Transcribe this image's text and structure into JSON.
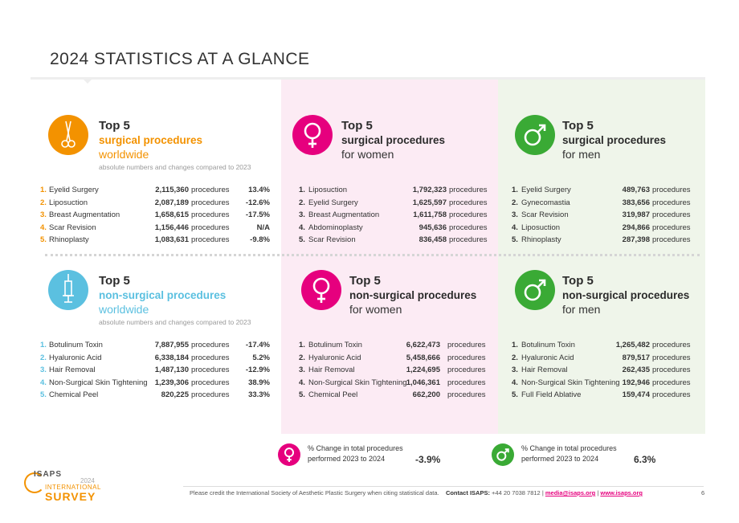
{
  "title": "2024 STATISTICS AT A GLANCE",
  "colors": {
    "surgical_worldwide": "#f39200",
    "nonsurgical_worldwide": "#5bc0e0",
    "women": "#e6007e",
    "men": "#3aaa35",
    "women_bg": "#fcebf4",
    "men_bg": "#eff5ea"
  },
  "panels": {
    "surg_world": {
      "top": "Top 5",
      "category": "surgical procedures",
      "subtitle": "worldwide",
      "note": "absolute numbers and changes compared to 2023",
      "icon": "scissors-icon",
      "rows": [
        {
          "rank": "1.",
          "name": "Eyelid Surgery",
          "number": "2,115,360",
          "unit": "procedures",
          "change": "13.4%"
        },
        {
          "rank": "2.",
          "name": "Liposuction",
          "number": "2,087,189",
          "unit": "procedures",
          "change": "-12.6%"
        },
        {
          "rank": "3.",
          "name": "Breast Augmentation",
          "number": "1,658,615",
          "unit": "procedures",
          "change": "-17.5%"
        },
        {
          "rank": "4.",
          "name": "Scar Revision",
          "number": "1,156,446",
          "unit": "procedures",
          "change": "N/A"
        },
        {
          "rank": "5.",
          "name": "Rhinoplasty",
          "number": "1,083,631",
          "unit": "procedures",
          "change": "-9.8%"
        }
      ]
    },
    "surg_women": {
      "top": "Top 5",
      "category": "surgical procedures",
      "subtitle": "for women",
      "icon": "female-symbol-icon",
      "rows": [
        {
          "rank": "1.",
          "name": "Liposuction",
          "number": "1,792,323",
          "unit": "procedures"
        },
        {
          "rank": "2.",
          "name": "Eyelid Surgery",
          "number": "1,625,597",
          "unit": "procedures"
        },
        {
          "rank": "3.",
          "name": "Breast Augmentation",
          "number": "1,611,758",
          "unit": "procedures"
        },
        {
          "rank": "4.",
          "name": "Abdominoplasty",
          "number": "945,636",
          "unit": "procedures"
        },
        {
          "rank": "5.",
          "name": "Scar Revision",
          "number": "836,458",
          "unit": "procedures"
        }
      ]
    },
    "surg_men": {
      "top": "Top 5",
      "category": "surgical procedures",
      "subtitle": "for men",
      "icon": "male-symbol-icon",
      "rows": [
        {
          "rank": "1.",
          "name": "Eyelid Surgery",
          "number": "489,763",
          "unit": "procedures"
        },
        {
          "rank": "2.",
          "name": "Gynecomastia",
          "number": "383,656",
          "unit": "procedures"
        },
        {
          "rank": "3.",
          "name": "Scar Revision",
          "number": "319,987",
          "unit": "procedures"
        },
        {
          "rank": "4.",
          "name": "Liposuction",
          "number": "294,866",
          "unit": "procedures"
        },
        {
          "rank": "5.",
          "name": "Rhinoplasty",
          "number": "287,398",
          "unit": "procedures"
        }
      ]
    },
    "nonsurg_world": {
      "top": "Top 5",
      "category": "non-surgical procedures",
      "subtitle": "worldwide",
      "note": "absolute numbers and changes compared to 2023",
      "icon": "syringe-icon",
      "rows": [
        {
          "rank": "1.",
          "name": "Botulinum Toxin",
          "number": "7,887,955",
          "unit": "procedures",
          "change": "-17.4%"
        },
        {
          "rank": "2.",
          "name": "Hyaluronic Acid",
          "number": "6,338,184",
          "unit": "procedures",
          "change": "5.2%"
        },
        {
          "rank": "3.",
          "name": "Hair Removal",
          "number": "1,487,130",
          "unit": "procedures",
          "change": "-12.9%"
        },
        {
          "rank": "4.",
          "name": "Non-Surgical Skin Tightening",
          "number": "1,239,306",
          "unit": "procedures",
          "change": "38.9%"
        },
        {
          "rank": "5.",
          "name": "Chemical Peel",
          "number": "820,225",
          "unit": "procedures",
          "change": "33.3%"
        }
      ]
    },
    "nonsurg_women": {
      "top": "Top 5",
      "category": "non-surgical procedures",
      "subtitle": "for women",
      "icon": "female-symbol-icon",
      "rows": [
        {
          "rank": "1.",
          "name": "Botulinum Toxin",
          "number": "6,622,473",
          "unit": "procedures"
        },
        {
          "rank": "2.",
          "name": "Hyaluronic Acid",
          "number": "5,458,666",
          "unit": "procedures"
        },
        {
          "rank": "3.",
          "name": "Hair Removal",
          "number": "1,224,695",
          "unit": "procedures"
        },
        {
          "rank": "4.",
          "name": "Non-Surgical Skin Tightening",
          "number": "1,046,361",
          "unit": "procedures"
        },
        {
          "rank": "5.",
          "name": "Chemical Peel",
          "number": "662,200",
          "unit": "procedures"
        }
      ]
    },
    "nonsurg_men": {
      "top": "Top 5",
      "category": "non-surgical procedures",
      "subtitle": "for men",
      "icon": "male-symbol-icon",
      "rows": [
        {
          "rank": "1.",
          "name": "Botulinum Toxin",
          "number": "1,265,482",
          "unit": "procedures"
        },
        {
          "rank": "2.",
          "name": "Hyaluronic Acid",
          "number": "879,517",
          "unit": "procedures"
        },
        {
          "rank": "3.",
          "name": "Hair Removal",
          "number": "262,435",
          "unit": "procedures"
        },
        {
          "rank": "4.",
          "name": "Non-Surgical Skin Tightening",
          "number": "192,946",
          "unit": "procedures"
        },
        {
          "rank": "5.",
          "name": "Full Field Ablative",
          "number": "159,474",
          "unit": "procedures"
        }
      ]
    }
  },
  "legend": {
    "women": {
      "line1": "% Change in total procedures",
      "line2": "performed 2023 to 2024",
      "value": "-3.9%"
    },
    "men": {
      "line1": "% Change in total procedures",
      "line2": "performed 2023 to 2024",
      "value": "6.3%"
    }
  },
  "footer": {
    "credit": "Please credit the International Society of Aesthetic Plastic Surgery when citing statistical data.",
    "contact_label": "Contact ISAPS:",
    "phone": "+44 20 7038 7812",
    "sep": "|",
    "email": "media@isaps.org",
    "web": "www.isaps.org",
    "page": "6"
  },
  "logo": {
    "isaps": "ISAPS",
    "year": "2024",
    "international": "INTERNATIONAL",
    "survey": "SURVEY"
  }
}
